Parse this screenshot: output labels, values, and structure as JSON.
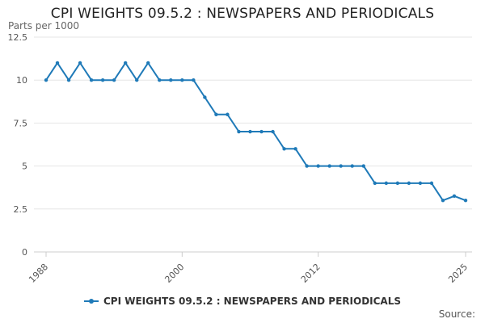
{
  "chart_data": {
    "type": "line",
    "title": "CPI WEIGHTS 09.5.2 : NEWSPAPERS AND PERIODICALS",
    "ylabel": "Parts per 1000",
    "xlabel": "",
    "ylim": [
      0,
      12.5
    ],
    "yticks": [
      0,
      2.5,
      5,
      7.5,
      10,
      12.5
    ],
    "ytick_labels": [
      "0",
      "2.5",
      "5",
      "7.5",
      "10",
      "12.5"
    ],
    "xlim": [
      1988,
      2025
    ],
    "xticks": [
      1988,
      2000,
      2012,
      2025
    ],
    "xtick_labels": [
      "1988",
      "2000",
      "2012",
      "2025"
    ],
    "grid": true,
    "legend_position": "bottom",
    "series": [
      {
        "name": "CPI WEIGHTS 09.5.2 : NEWSPAPERS AND PERIODICALS",
        "color": "#1f7ab8",
        "x": [
          1988,
          1989,
          1990,
          1991,
          1992,
          1993,
          1994,
          1995,
          1996,
          1997,
          1998,
          1999,
          2000,
          2001,
          2002,
          2003,
          2004,
          2005,
          2006,
          2007,
          2008,
          2009,
          2010,
          2011,
          2012,
          2013,
          2014,
          2015,
          2016,
          2017,
          2018,
          2019,
          2020,
          2021,
          2022,
          2023,
          2024,
          2025
        ],
        "values": [
          10,
          11,
          10,
          11,
          10,
          10,
          10,
          11,
          10,
          11,
          10,
          10,
          10,
          10,
          9,
          8,
          8,
          7,
          7,
          7,
          7,
          6,
          6,
          5,
          5,
          5,
          5,
          5,
          5,
          4,
          4,
          4,
          4,
          4,
          4,
          3,
          3.25,
          3
        ]
      }
    ]
  },
  "legend": {
    "label": "CPI WEIGHTS 09.5.2 : NEWSPAPERS AND PERIODICALS"
  },
  "source_text": "Source:"
}
